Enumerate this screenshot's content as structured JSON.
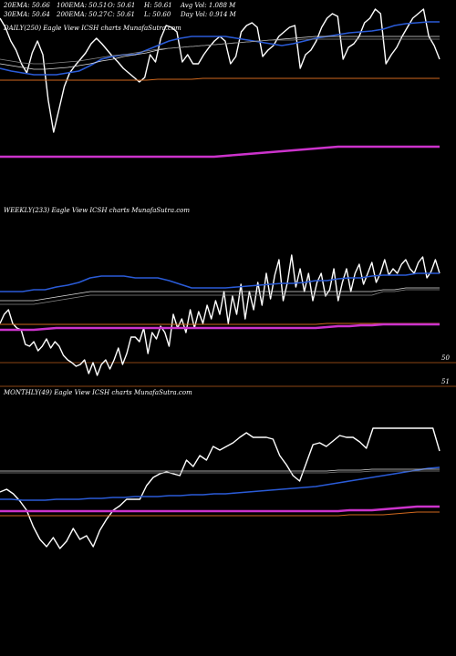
{
  "stats": {
    "ema20": "20EMA: 50.66",
    "ema100": "100EMA: 50.51",
    "open": "O: 50.61",
    "high": "H: 50.61",
    "avg_vol": "Avg Vol: 1.088  M",
    "ema30": "30EMA: 50.64",
    "ema200": "200EMA: 50.27",
    "close": "C: 50.61",
    "low": "L: 50.60",
    "day_vol": "Day Vol: 0.914  M"
  },
  "panels": {
    "daily": {
      "label": "DAILY(250) Eagle   View  ICSH charts MunafaSutra.com"
    },
    "weekly": {
      "label": "WEEKLY(233) Eagle   View  ICSH charts MunafaSutra.com"
    },
    "monthly": {
      "label": "MONTHLY(49) Eagle   View  ICSH charts MunafaSutra.com"
    }
  },
  "axis": {
    "weekly_tick_top": "50",
    "weekly_tick_bottom": "51"
  },
  "colors": {
    "price": "#ffffff",
    "ema_blue": "#2a5bd7",
    "ema_white": "#dddddd",
    "ema_gray": "#888888",
    "ema_orange": "#d2691e",
    "magenta": "#cc33cc",
    "divider": "#8b4513"
  },
  "chart_data": [
    {
      "type": "line",
      "panel": "daily",
      "series": [
        {
          "values": [
            20,
            30,
            45,
            55,
            70,
            80,
            58,
            45,
            60,
            110,
            145,
            120,
            95,
            80,
            72,
            65,
            58,
            48,
            42,
            48,
            55,
            62,
            68,
            75,
            80,
            85,
            90,
            85,
            60,
            68,
            42,
            28,
            30,
            35,
            68,
            60,
            70,
            70,
            60,
            52,
            45,
            40,
            45,
            70,
            62,
            35,
            28,
            25,
            30,
            62,
            55,
            50,
            40,
            35,
            30,
            28,
            75,
            60,
            55,
            45,
            30,
            20,
            15,
            18,
            65,
            52,
            48,
            40,
            25,
            20,
            10,
            15,
            70,
            60,
            52,
            40,
            30,
            20,
            15,
            10,
            40,
            50,
            65
          ]
        },
        {
          "values": [
            75,
            78,
            80,
            82,
            82,
            82,
            80,
            78,
            72,
            65,
            62,
            60,
            60,
            55,
            50,
            45,
            42,
            40,
            40,
            40,
            40,
            42,
            44,
            46,
            48,
            50,
            48,
            45,
            42,
            40,
            38,
            36,
            35,
            34,
            32,
            28,
            26,
            25,
            24,
            24
          ]
        },
        {
          "values": [
            70,
            72,
            74,
            76,
            76,
            75,
            74,
            72,
            70,
            67,
            65,
            62,
            60,
            58,
            55,
            53,
            52,
            51,
            50,
            49,
            48,
            47,
            46,
            45,
            44,
            43,
            42,
            41,
            40,
            40,
            40,
            40,
            40,
            40,
            40,
            40,
            40,
            40,
            40,
            40
          ]
        },
        {
          "values": [
            65,
            67,
            69,
            70,
            70,
            69,
            68,
            67,
            65,
            63,
            61,
            60,
            58,
            56,
            54,
            53,
            52,
            51,
            50,
            49,
            48,
            47,
            46,
            45,
            44,
            44,
            44,
            43,
            43,
            43,
            43,
            43,
            43,
            43,
            43,
            43,
            43,
            43,
            43,
            43
          ]
        },
        {
          "values": [
            88,
            88,
            88,
            88,
            88,
            88,
            88,
            88,
            88,
            88,
            88,
            88,
            88,
            88,
            87,
            87,
            87,
            87,
            86,
            86,
            86,
            86,
            86,
            86,
            86,
            86,
            86,
            86,
            86,
            86,
            86,
            86,
            86,
            86,
            86,
            86,
            86,
            86,
            86,
            86
          ]
        },
        {
          "values": [
            172,
            172,
            172,
            172,
            172,
            172,
            172,
            172,
            172,
            172,
            172,
            172,
            172,
            172,
            172,
            172,
            172,
            172,
            172,
            172,
            171,
            170,
            169,
            168,
            167,
            166,
            165,
            164,
            163,
            162,
            161,
            161,
            161,
            161,
            161,
            161,
            161,
            161,
            161,
            161
          ]
        }
      ]
    },
    {
      "type": "line",
      "panel": "weekly",
      "series": [
        {
          "values": [
            355,
            345,
            340,
            355,
            360,
            362,
            378,
            380,
            375,
            385,
            380,
            372,
            382,
            375,
            380,
            390,
            395,
            398,
            402,
            400,
            395,
            410,
            398,
            412,
            400,
            395,
            405,
            395,
            382,
            400,
            388,
            370,
            370,
            375,
            360,
            388,
            365,
            372,
            358,
            365,
            380,
            345,
            360,
            350,
            365,
            340,
            360,
            342,
            355,
            335,
            350,
            330,
            345,
            320,
            355,
            325,
            345,
            312,
            350,
            320,
            340,
            310,
            335,
            300,
            328,
            302,
            285,
            330,
            310,
            280,
            315,
            295,
            320,
            300,
            330,
            310,
            300,
            325,
            318,
            295,
            330,
            310,
            295,
            320,
            300,
            290,
            312,
            300,
            288,
            310,
            300,
            285,
            302,
            295,
            300,
            290,
            285,
            295,
            300,
            288,
            282,
            305,
            298,
            285,
            300
          ]
        },
        {
          "values": [
            320,
            320,
            320,
            318,
            318,
            315,
            313,
            310,
            305,
            303,
            303,
            303,
            305,
            305,
            305,
            308,
            312,
            316,
            316,
            316,
            316,
            315,
            314,
            313,
            312,
            311,
            311,
            310,
            308,
            308,
            306,
            305,
            305,
            303,
            302,
            302,
            302,
            300,
            300,
            300
          ]
        },
        {
          "values": [
            330,
            330,
            330,
            330,
            328,
            326,
            324,
            322,
            320,
            320,
            320,
            320,
            320,
            320,
            320,
            320,
            320,
            320,
            320,
            320,
            320,
            320,
            320,
            320,
            320,
            320,
            320,
            320,
            320,
            320,
            320,
            320,
            320,
            320,
            318,
            318,
            316,
            316,
            316,
            316
          ]
        },
        {
          "values": [
            334,
            334,
            334,
            334,
            332,
            330,
            328,
            326,
            324,
            324,
            324,
            324,
            324,
            324,
            324,
            324,
            324,
            324,
            324,
            324,
            324,
            324,
            324,
            324,
            324,
            324,
            324,
            324,
            324,
            324,
            324,
            324,
            324,
            324,
            320,
            320,
            318,
            318,
            318,
            318
          ]
        },
        {
          "values": [
            356,
            356,
            356,
            356,
            356,
            356,
            356,
            356,
            356,
            356,
            356,
            356,
            356,
            356,
            356,
            356,
            356,
            356,
            356,
            356,
            356,
            356,
            356,
            356,
            356,
            356,
            356,
            356,
            356,
            355,
            355,
            355,
            355,
            355,
            355,
            355,
            355,
            355,
            355,
            355
          ]
        },
        {
          "values": [
            362,
            362,
            362,
            362,
            361,
            360,
            360,
            360,
            360,
            360,
            360,
            360,
            360,
            360,
            360,
            360,
            360,
            360,
            360,
            360,
            360,
            360,
            360,
            360,
            360,
            360,
            360,
            360,
            360,
            359,
            358,
            358,
            357,
            357,
            356,
            356,
            356,
            356,
            356,
            356
          ]
        }
      ]
    },
    {
      "type": "line",
      "panel": "monthly",
      "series": [
        {
          "values": [
            540,
            537,
            542,
            550,
            560,
            578,
            592,
            600,
            590,
            602,
            594,
            580,
            592,
            588,
            600,
            582,
            570,
            560,
            555,
            548,
            548,
            548,
            533,
            524,
            520,
            518,
            520,
            522,
            505,
            512,
            500,
            505,
            490,
            494,
            490,
            486,
            480,
            475,
            480,
            480,
            480,
            482,
            500,
            510,
            522,
            528,
            508,
            488,
            486,
            490,
            484,
            478,
            480,
            480,
            485,
            492,
            470,
            470,
            470,
            470,
            470,
            470,
            470,
            470,
            470,
            470,
            495
          ]
        },
        {
          "values": [
            548,
            548,
            549,
            549,
            549,
            548,
            548,
            548,
            547,
            547,
            546,
            546,
            545,
            545,
            545,
            544,
            544,
            543,
            543,
            542,
            542,
            541,
            540,
            539,
            538,
            537,
            536,
            535,
            534,
            532,
            530,
            528,
            526,
            524,
            522,
            520,
            518,
            516,
            514,
            513
          ]
        },
        {
          "values": [
            517,
            517,
            517,
            517,
            517,
            517,
            517,
            517,
            517,
            517,
            517,
            517,
            517,
            517,
            517,
            517,
            517,
            517,
            517,
            517,
            517,
            517,
            517,
            517,
            517,
            517,
            517,
            517,
            517,
            517,
            516,
            516,
            516,
            515,
            515,
            515,
            515,
            515,
            515,
            515
          ]
        },
        {
          "values": [
            519,
            519,
            519,
            519,
            519,
            519,
            519,
            519,
            519,
            519,
            519,
            519,
            519,
            519,
            519,
            519,
            519,
            519,
            519,
            519,
            519,
            519,
            519,
            519,
            519,
            519,
            519,
            519,
            519,
            519,
            518,
            518,
            518,
            517,
            517,
            517,
            517,
            517,
            517,
            517
          ]
        },
        {
          "values": [
            566,
            566,
            566,
            566,
            566,
            566,
            566,
            566,
            566,
            566,
            566,
            566,
            566,
            566,
            566,
            566,
            566,
            566,
            566,
            566,
            566,
            566,
            566,
            566,
            566,
            566,
            566,
            566,
            566,
            566,
            566,
            565,
            565,
            565,
            565,
            564,
            563,
            562,
            562,
            562
          ]
        },
        {
          "values": [
            561,
            561,
            561,
            561,
            561,
            561,
            561,
            561,
            561,
            561,
            561,
            561,
            561,
            561,
            561,
            561,
            561,
            561,
            561,
            561,
            561,
            561,
            561,
            561,
            561,
            561,
            561,
            561,
            561,
            561,
            561,
            560,
            560,
            560,
            559,
            558,
            557,
            556,
            556,
            556
          ]
        }
      ]
    }
  ]
}
